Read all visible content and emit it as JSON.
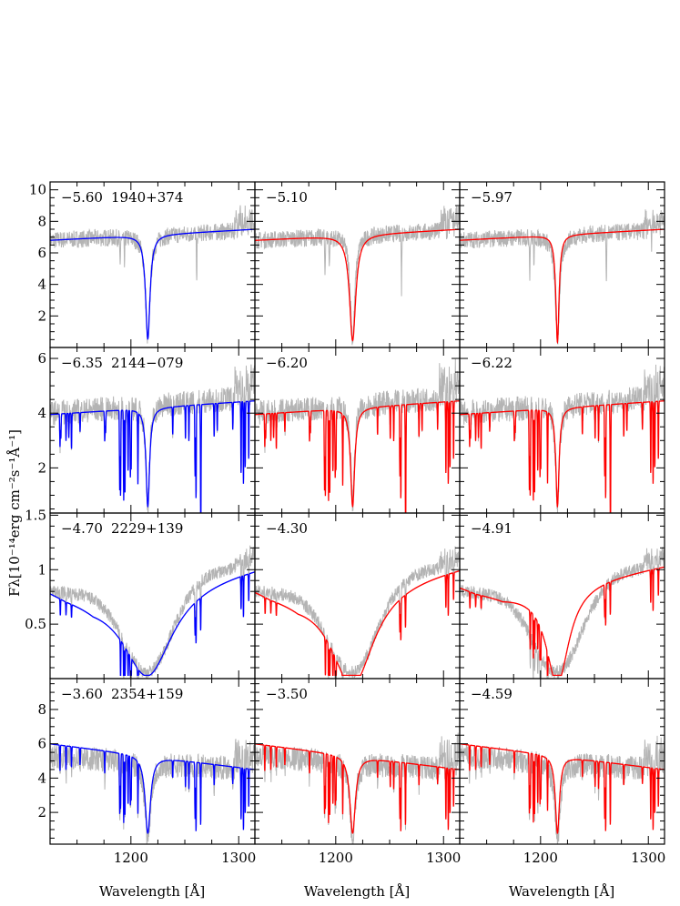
{
  "chart_data": {
    "type": "line",
    "layout": {
      "rows": 4,
      "cols": 3
    },
    "xlabel": "Wavelength [Å]",
    "ylabel": "Fλ[10⁻¹⁴erg cm⁻²s⁻¹Å⁻¹]",
    "xlim": [
      1125,
      1315
    ],
    "xticks": [
      1200,
      1300
    ],
    "xtick_labels": [
      "1200",
      "1300"
    ],
    "xminor_step": 25,
    "colors": {
      "observed": "#b4b4b4",
      "model_first": "#0000ff",
      "model_other": "#ff0000",
      "frame": "#000000"
    },
    "lyman_alpha_center": 1215.67,
    "rows": [
      {
        "star": "1940+374",
        "ylim": [
          0,
          10.5
        ],
        "yticks": [
          2,
          4,
          6,
          8,
          10
        ],
        "ytick_labels": [
          "2",
          "4",
          "6",
          "8",
          "10"
        ],
        "yminor_step": 0.5,
        "continuum": [
          [
            1125,
            6.8
          ],
          [
            1315,
            7.5
          ]
        ],
        "obs_continuum": [
          [
            1125,
            6.8
          ],
          [
            1315,
            7.45
          ]
        ],
        "obs_noise": 0.55,
        "lya_depth": 6.6,
        "lya_width": 2.5,
        "metal_lines": [],
        "obs_absorptions": [
          [
            1190,
            2.2
          ],
          [
            1194,
            1.8
          ],
          [
            1261,
            3.5
          ],
          [
            1303,
            1.5
          ]
        ],
        "panels": [
          {
            "label": "−5.60",
            "depth": 6.6,
            "width": 2.5
          },
          {
            "label": "−5.10",
            "depth": 6.7,
            "width": 3.5
          },
          {
            "label": "−5.97",
            "depth": 6.8,
            "width": 1.8
          }
        ]
      },
      {
        "star": "2144−079",
        "ylim": [
          0.35,
          6.4
        ],
        "yticks": [
          2,
          4,
          6
        ],
        "ytick_labels": [
          "2",
          "4",
          "6"
        ],
        "yminor_step": 0.5,
        "continuum": [
          [
            1125,
            3.95
          ],
          [
            1315,
            4.45
          ]
        ],
        "obs_continuum": [
          [
            1125,
            4.0
          ],
          [
            1315,
            4.6
          ]
        ],
        "obs_noise": 0.45,
        "lya_depth": 3.6,
        "lya_width": 2.0,
        "metal_lines": [
          [
            1134.2,
            1.2
          ],
          [
            1135.0,
            0.9
          ],
          [
            1139.8,
            1.0
          ],
          [
            1142.4,
            0.9
          ],
          [
            1144.9,
            1.3
          ],
          [
            1152.8,
            0.7
          ],
          [
            1175.7,
            1.1
          ],
          [
            1176.5,
            0.8
          ],
          [
            1189.6,
            2.9
          ],
          [
            1190.4,
            3.1
          ],
          [
            1193.3,
            3.3
          ],
          [
            1194.5,
            3.0
          ],
          [
            1197.4,
            2.2
          ],
          [
            1199.5,
            2.4
          ],
          [
            1200.2,
            2.1
          ],
          [
            1206.5,
            2.6
          ],
          [
            1238.8,
            1.0
          ],
          [
            1250.6,
            1.2
          ],
          [
            1253.8,
            1.3
          ],
          [
            1259.5,
            2.6
          ],
          [
            1260.4,
            3.4
          ],
          [
            1264.7,
            3.2
          ],
          [
            1265.0,
            2.3
          ],
          [
            1277.2,
            1.2
          ],
          [
            1280.1,
            1.0
          ],
          [
            1294.5,
            1.0
          ],
          [
            1302.2,
            2.6
          ],
          [
            1304.4,
            3.0
          ],
          [
            1306.0,
            2.4
          ],
          [
            1309.3,
            2.1
          ]
        ],
        "obs_absorptions": [],
        "panels": [
          {
            "label": "−6.35",
            "depth": 3.6,
            "width": 2.0
          },
          {
            "label": "−6.20",
            "depth": 3.6,
            "width": 2.3
          },
          {
            "label": "−6.22",
            "depth": 3.6,
            "width": 1.8
          }
        ]
      },
      {
        "star": "2229+139",
        "ylim": [
          0,
          1.52
        ],
        "yticks": [
          0.5,
          1,
          1.5
        ],
        "ytick_labels": [
          "0.5",
          "1",
          "1.5"
        ],
        "yminor_step": 0.1,
        "continuum": [
          [
            1125,
            0.85
          ],
          [
            1140,
            0.8
          ],
          [
            1165,
            0.76
          ],
          [
            1315,
            1.04
          ]
        ],
        "obs_continuum": [
          [
            1125,
            0.8
          ],
          [
            1150,
            0.78
          ],
          [
            1175,
            0.78
          ],
          [
            1315,
            1.05
          ]
        ],
        "obs_noise": 0.06,
        "obs_lya": {
          "depth": 0.8,
          "width": 22
        },
        "metal_lines": [
          [
            1134.5,
            0.15
          ],
          [
            1139.8,
            0.12
          ],
          [
            1144.9,
            0.12
          ],
          [
            1190.4,
            0.35
          ],
          [
            1193.3,
            0.4
          ],
          [
            1194.5,
            0.3
          ],
          [
            1197.4,
            0.25
          ],
          [
            1199.5,
            0.3
          ],
          [
            1200.2,
            0.28
          ],
          [
            1206.5,
            0.35
          ],
          [
            1259.5,
            0.3
          ],
          [
            1260.4,
            0.38
          ],
          [
            1264.7,
            0.3
          ],
          [
            1302.2,
            0.3
          ],
          [
            1304.4,
            0.38
          ],
          [
            1309.3,
            0.25
          ]
        ],
        "obs_absorptions": [],
        "panels": [
          {
            "label": "−4.70",
            "depth": 0.83,
            "width": 28
          },
          {
            "label": "−4.30",
            "depth": 0.92,
            "width": 24
          },
          {
            "label": "−4.91",
            "depth": 0.9,
            "width": 13
          }
        ]
      },
      {
        "star": "2354+159",
        "ylim": [
          0.15,
          9.8
        ],
        "yticks": [
          2,
          4,
          6,
          8
        ],
        "ytick_labels": [
          "2",
          "4",
          "6",
          "8"
        ],
        "yminor_step": 0.5,
        "continuum": [
          [
            1125,
            6.0
          ],
          [
            1315,
            4.5
          ]
        ],
        "obs_continuum": [
          [
            1125,
            5.3
          ],
          [
            1315,
            4.5
          ]
        ],
        "obs_noise": 0.7,
        "lya_depth": 4.5,
        "lya_width": 3.0,
        "metal_lines": [
          [
            1134.2,
            1.5
          ],
          [
            1139.8,
            1.4
          ],
          [
            1144.9,
            1.2
          ],
          [
            1152.8,
            1.0
          ],
          [
            1175.7,
            1.3
          ],
          [
            1189.6,
            3.5
          ],
          [
            1190.4,
            3.2
          ],
          [
            1193.3,
            4.0
          ],
          [
            1194.5,
            3.5
          ],
          [
            1197.4,
            2.8
          ],
          [
            1199.5,
            2.8
          ],
          [
            1200.2,
            2.5
          ],
          [
            1206.5,
            3.0
          ],
          [
            1238.8,
            1.0
          ],
          [
            1250.6,
            1.5
          ],
          [
            1253.8,
            1.6
          ],
          [
            1259.5,
            3.3
          ],
          [
            1260.4,
            4.0
          ],
          [
            1264.7,
            3.6
          ],
          [
            1277.2,
            1.2
          ],
          [
            1294.5,
            1.0
          ],
          [
            1302.2,
            3.0
          ],
          [
            1304.4,
            3.6
          ],
          [
            1306.0,
            2.6
          ],
          [
            1309.3,
            2.2
          ]
        ],
        "obs_absorptions": [],
        "panels": [
          {
            "label": "−3.60",
            "depth": 4.5,
            "width": 3.0
          },
          {
            "label": "−3.50",
            "depth": 4.5,
            "width": 3.1
          },
          {
            "label": "−4.59",
            "depth": 4.5,
            "width": 2.3
          }
        ]
      }
    ]
  }
}
